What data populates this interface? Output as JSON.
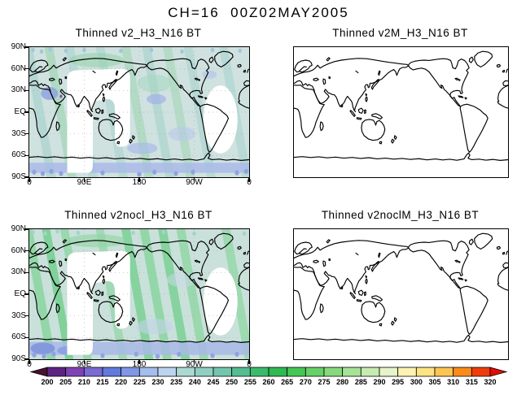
{
  "title": "CH=16  00Z02MAY2005",
  "panels": [
    {
      "title": "Thinned v2_H3_N16 BT",
      "has_data": true
    },
    {
      "title": "Thinned v2M_H3_N16 BT",
      "has_data": false
    },
    {
      "title": "Thinned v2nocl_H3_N16 BT",
      "has_data": true
    },
    {
      "title": "Thinned v2noclM_H3_N16 BT",
      "has_data": false
    }
  ],
  "axes": {
    "lat": [
      "90N",
      "60N",
      "30N",
      "EQ",
      "30S",
      "60S",
      "90S"
    ],
    "lon": [
      "0",
      "90E",
      "180",
      "90W",
      "0"
    ]
  },
  "colorbar": {
    "ticks": [
      "200",
      "205",
      "210",
      "215",
      "220",
      "225",
      "230",
      "235",
      "240",
      "245",
      "250",
      "255",
      "260",
      "265",
      "270",
      "275",
      "280",
      "285",
      "290",
      "295",
      "300",
      "305",
      "310",
      "315",
      "320"
    ],
    "colors": [
      "#4a1030",
      "#5e2383",
      "#7e42b5",
      "#7a6ad1",
      "#6279de",
      "#8097e6",
      "#a3bdec",
      "#bed4ee",
      "#abd8d2",
      "#90cfc2",
      "#74c5ad",
      "#54bd92",
      "#3cba6b",
      "#2eb952",
      "#45c653",
      "#65d166",
      "#86da7d",
      "#a7e396",
      "#c6ecb1",
      "#e6f4c9",
      "#fdf2b3",
      "#fde383",
      "#fdc453",
      "#fb8c1a",
      "#ef3c0c",
      "#e40b00"
    ]
  },
  "chart_data": {
    "type": "heatmap",
    "title": "CH=16  00Z02MAY2005",
    "projection": "global equirectangular, lon 0E-360E (dateline centered), lat 90S-90N",
    "panels": [
      {
        "title": "Thinned v2_H3_N16 BT",
        "data_plotted": true,
        "approx_bt_range_K": [
          210,
          275
        ],
        "note": "pale blue/teal swaths with blue patches; white orbital gaps over Asia-Australia arch and South Atlantic"
      },
      {
        "title": "Thinned v2M_H3_N16 BT",
        "data_plotted": false,
        "note": "empty map, coastlines only"
      },
      {
        "title": "Thinned v2nocl_H3_N16 BT",
        "data_plotted": true,
        "approx_bt_range_K": [
          215,
          280
        ],
        "note": "teal base with strong diagonal green swath bands, blue band along Antarctica; same white orbital gaps"
      },
      {
        "title": "Thinned v2noclM_H3_N16 BT",
        "data_plotted": false,
        "note": "empty map, coastlines only"
      }
    ],
    "colorbar_levels": [
      200,
      205,
      210,
      215,
      220,
      225,
      230,
      235,
      240,
      245,
      250,
      255,
      260,
      265,
      270,
      275,
      280,
      285,
      290,
      295,
      300,
      305,
      310,
      315,
      320
    ],
    "lat_ticks": [
      "90N",
      "60N",
      "30N",
      "EQ",
      "30S",
      "60S",
      "90S"
    ],
    "lon_ticks": [
      "0",
      "90E",
      "180",
      "90W",
      "0"
    ],
    "legend_position": "bottom horizontal colorbar with end arrows"
  }
}
